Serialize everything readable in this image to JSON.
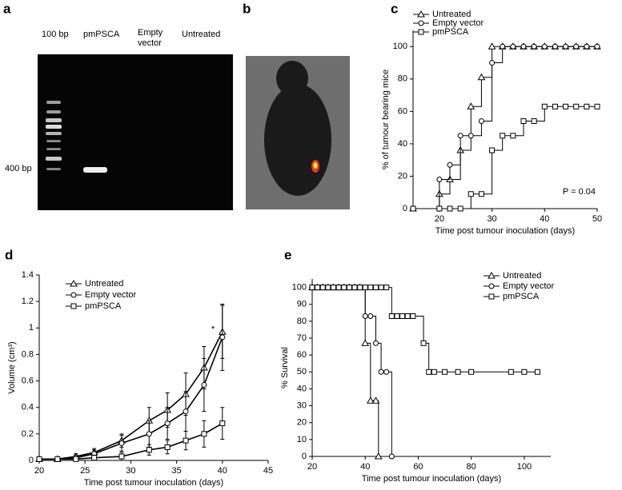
{
  "panels": {
    "a": "a",
    "b": "b",
    "c": "c",
    "d": "d",
    "e": "e"
  },
  "gel": {
    "lanes": [
      "100 bp",
      "pmPSCA",
      "Empty",
      "vector",
      "Untreated"
    ],
    "marker": "400 bp"
  },
  "chart_data": [
    {
      "type": "line",
      "step": true,
      "xlabel": "Time post tumour inoculation (days)",
      "ylabel": "% of tumour bearing mice",
      "xlim": [
        15,
        50
      ],
      "xticks": [
        20,
        30,
        40,
        50
      ],
      "ylim": [
        0,
        110
      ],
      "yticks": [
        0,
        20,
        40,
        60,
        80,
        100
      ],
      "annotations": [
        "P = 0.04"
      ],
      "series": [
        {
          "name": "Untreated",
          "color": "#000000",
          "marker": "triangle",
          "x": [
            15,
            20,
            22,
            24,
            26,
            28,
            30,
            32,
            34,
            36,
            38,
            40,
            42,
            44,
            46,
            48,
            50
          ],
          "values": [
            0,
            9,
            18,
            36,
            63,
            81,
            100,
            100,
            100,
            100,
            100,
            100,
            100,
            100,
            100,
            100,
            100
          ]
        },
        {
          "name": "Empty  vector",
          "color": "#000000",
          "marker": "circle",
          "x": [
            15,
            20,
            22,
            24,
            26,
            28,
            30,
            32,
            34,
            36,
            38,
            40,
            42,
            44,
            46,
            48,
            50
          ],
          "values": [
            0,
            18,
            27,
            45,
            45,
            54,
            90,
            100,
            100,
            100,
            100,
            100,
            100,
            100,
            100,
            100,
            100
          ]
        },
        {
          "name": "pmPSCA",
          "color": "#000000",
          "marker": "square",
          "x": [
            15,
            20,
            22,
            24,
            26,
            28,
            30,
            32,
            34,
            36,
            38,
            40,
            42,
            44,
            46,
            48,
            50
          ],
          "values": [
            0,
            0,
            0,
            0,
            9,
            9,
            36,
            45,
            45,
            54,
            54,
            63,
            63,
            63,
            63,
            63,
            63
          ]
        }
      ]
    },
    {
      "type": "line",
      "step": false,
      "xlabel": "Time post tumour inoculation (days)",
      "ylabel": "Volume (cm³)",
      "xlim": [
        20,
        45
      ],
      "xticks": [
        20,
        25,
        30,
        35,
        40,
        45
      ],
      "ylim": [
        0,
        1.4
      ],
      "yticks": [
        0,
        0.2,
        0.4,
        0.6,
        0.8,
        1,
        1.2,
        1.4
      ],
      "annotations": [
        "*"
      ],
      "x": [
        20,
        22,
        24,
        26,
        29,
        32,
        34,
        36,
        38,
        40
      ],
      "series": [
        {
          "name": "Untreated",
          "color": "#000000",
          "marker": "triangle",
          "values": [
            0.01,
            0.01,
            0.03,
            0.06,
            0.15,
            0.3,
            0.38,
            0.5,
            0.7,
            0.97
          ],
          "errors": [
            0.01,
            0.01,
            0.02,
            0.03,
            0.05,
            0.1,
            0.13,
            0.16,
            0.16,
            0.2
          ]
        },
        {
          "name": "Empty  vector",
          "color": "#000000",
          "marker": "circle",
          "values": [
            0.01,
            0.01,
            0.02,
            0.05,
            0.13,
            0.2,
            0.28,
            0.37,
            0.57,
            0.93
          ],
          "errors": [
            0.01,
            0.01,
            0.02,
            0.03,
            0.06,
            0.1,
            0.12,
            0.15,
            0.2,
            0.25
          ]
        },
        {
          "name": "pmPSCA",
          "color": "#000000",
          "marker": "square",
          "values": [
            0.01,
            0.01,
            0.01,
            0.02,
            0.03,
            0.08,
            0.1,
            0.15,
            0.2,
            0.28
          ],
          "errors": [
            0.01,
            0.01,
            0.01,
            0.02,
            0.03,
            0.04,
            0.05,
            0.07,
            0.1,
            0.12
          ]
        }
      ]
    },
    {
      "type": "line",
      "step": true,
      "xlabel": "Time post tumour inoculation (days)",
      "ylabel": "% Survival",
      "xlim": [
        20,
        110
      ],
      "xticks": [
        20,
        40,
        60,
        80,
        100
      ],
      "ylim": [
        0,
        105
      ],
      "yticks": [
        0,
        10,
        20,
        30,
        40,
        50,
        60,
        70,
        80,
        90,
        100
      ],
      "series": [
        {
          "name": "Untreated",
          "color": "#000000",
          "marker": "triangle",
          "x": [
            20,
            22,
            24,
            26,
            28,
            30,
            32,
            34,
            36,
            38,
            40,
            42,
            44,
            45
          ],
          "values": [
            100,
            100,
            100,
            100,
            100,
            100,
            100,
            100,
            100,
            100,
            67,
            33,
            33,
            0
          ]
        },
        {
          "name": "Empty  vector",
          "color": "#000000",
          "marker": "circle",
          "x": [
            20,
            22,
            24,
            26,
            28,
            30,
            32,
            34,
            36,
            38,
            40,
            42,
            44,
            46,
            48,
            50
          ],
          "values": [
            100,
            100,
            100,
            100,
            100,
            100,
            100,
            100,
            100,
            100,
            83,
            83,
            67,
            50,
            50,
            0
          ]
        },
        {
          "name": "pmPSCA",
          "color": "#000000",
          "marker": "square",
          "x": [
            20,
            22,
            24,
            26,
            28,
            30,
            32,
            34,
            36,
            38,
            40,
            42,
            44,
            46,
            48,
            50,
            52,
            54,
            56,
            58,
            62,
            64,
            66,
            70,
            75,
            80,
            95,
            100,
            105
          ],
          "values": [
            100,
            100,
            100,
            100,
            100,
            100,
            100,
            100,
            100,
            100,
            100,
            100,
            100,
            100,
            100,
            83,
            83,
            83,
            83,
            83,
            67,
            50,
            50,
            50,
            50,
            50,
            50,
            50,
            50
          ]
        }
      ]
    }
  ]
}
